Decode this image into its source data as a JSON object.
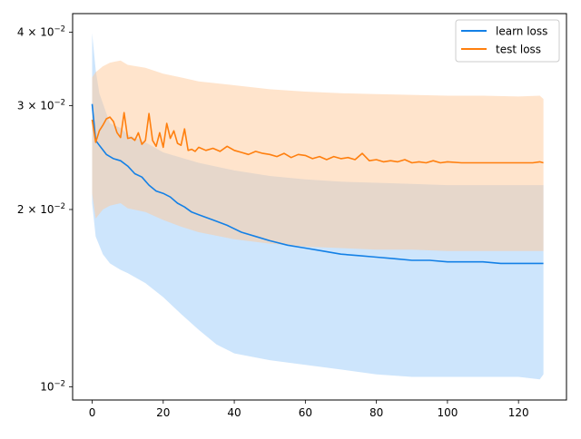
{
  "chart_data": {
    "type": "line",
    "title": "",
    "xlabel": "",
    "ylabel": "",
    "yscale": "log",
    "xlim": [
      -5.5,
      133.5
    ],
    "ylim": [
      0.0095,
      0.043
    ],
    "grid": false,
    "legend_position": "top-right",
    "x_ticks": [
      0,
      20,
      40,
      60,
      80,
      100,
      120
    ],
    "x_tick_labels": [
      "0",
      "20",
      "40",
      "60",
      "80",
      "100",
      "120"
    ],
    "y_ticks": [
      0.01,
      0.02,
      0.03,
      0.04
    ],
    "y_tick_labels": [
      {
        "mantissa": "",
        "base": "10",
        "exp": "−2"
      },
      {
        "mantissa": "2 × ",
        "base": "10",
        "exp": "−2"
      },
      {
        "mantissa": "3 × ",
        "base": "10",
        "exp": "−2"
      },
      {
        "mantissa": "4 × ",
        "base": "10",
        "exp": "−2"
      }
    ],
    "series": [
      {
        "name": "learn loss",
        "color": "#1f77b4",
        "line_color": "#1380e6",
        "band_color": "#9ccbfa",
        "mean": {
          "x": [
            0,
            1,
            2,
            4,
            6,
            8,
            10,
            12,
            14,
            16,
            18,
            20,
            22,
            24,
            26,
            28,
            30,
            34,
            38,
            42,
            46,
            50,
            55,
            60,
            65,
            70,
            75,
            80,
            85,
            90,
            95,
            100,
            105,
            110,
            115,
            120,
            127
          ],
          "y": [
            0.0302,
            0.0262,
            0.0257,
            0.0248,
            0.0244,
            0.0242,
            0.0237,
            0.023,
            0.0227,
            0.022,
            0.0215,
            0.0213,
            0.021,
            0.0205,
            0.0202,
            0.0198,
            0.0196,
            0.0192,
            0.0188,
            0.0183,
            0.018,
            0.0177,
            0.0174,
            0.0172,
            0.017,
            0.0168,
            0.0167,
            0.0166,
            0.0165,
            0.0164,
            0.0164,
            0.0163,
            0.0163,
            0.0163,
            0.0162,
            0.0162,
            0.0162
          ]
        },
        "upper": {
          "x": [
            0,
            1,
            2,
            5,
            8,
            10,
            15,
            20,
            25,
            30,
            40,
            50,
            60,
            70,
            80,
            90,
            100,
            110,
            120,
            127
          ],
          "y": [
            0.0398,
            0.0345,
            0.0315,
            0.028,
            0.0275,
            0.0268,
            0.026,
            0.025,
            0.0245,
            0.024,
            0.0233,
            0.0228,
            0.0225,
            0.0223,
            0.0222,
            0.0221,
            0.022,
            0.022,
            0.022,
            0.022
          ]
        },
        "lower": {
          "x": [
            0,
            1,
            3,
            5,
            8,
            10,
            15,
            20,
            25,
            30,
            35,
            40,
            50,
            60,
            70,
            80,
            90,
            100,
            110,
            120,
            126,
            127
          ],
          "y": [
            0.0205,
            0.018,
            0.0168,
            0.0162,
            0.0158,
            0.0156,
            0.015,
            0.0142,
            0.0133,
            0.0125,
            0.0118,
            0.0114,
            0.0111,
            0.0109,
            0.0107,
            0.0105,
            0.0104,
            0.0104,
            0.0104,
            0.0104,
            0.0103,
            0.0105
          ]
        }
      },
      {
        "name": "test loss",
        "color": "#ff7f0e",
        "line_color": "#ff7f0e",
        "band_color": "#ffc99a",
        "mean": {
          "x": [
            0,
            1,
            2,
            3,
            4,
            5,
            6,
            7,
            8,
            9,
            10,
            11,
            12,
            13,
            14,
            15,
            16,
            17,
            18,
            19,
            20,
            21,
            22,
            23,
            24,
            25,
            26,
            27,
            28,
            29,
            30,
            32,
            34,
            36,
            38,
            40,
            42,
            44,
            46,
            48,
            50,
            52,
            54,
            56,
            58,
            60,
            62,
            64,
            66,
            68,
            70,
            72,
            74,
            76,
            78,
            80,
            82,
            84,
            86,
            88,
            90,
            92,
            94,
            96,
            98,
            100,
            104,
            108,
            112,
            116,
            120,
            124,
            126,
            127
          ],
          "y": [
            0.0284,
            0.026,
            0.0272,
            0.0278,
            0.0285,
            0.0287,
            0.0282,
            0.027,
            0.0265,
            0.0292,
            0.0264,
            0.0265,
            0.0262,
            0.027,
            0.0258,
            0.0262,
            0.0291,
            0.0262,
            0.0256,
            0.027,
            0.0255,
            0.028,
            0.0264,
            0.0272,
            0.0259,
            0.0257,
            0.0274,
            0.0252,
            0.0253,
            0.0251,
            0.0255,
            0.0252,
            0.0254,
            0.0251,
            0.0256,
            0.0252,
            0.025,
            0.0248,
            0.0251,
            0.0249,
            0.0248,
            0.0246,
            0.0249,
            0.0245,
            0.0248,
            0.0247,
            0.0244,
            0.0246,
            0.0243,
            0.0246,
            0.0244,
            0.0245,
            0.0243,
            0.0249,
            0.0242,
            0.0243,
            0.0241,
            0.0242,
            0.0241,
            0.0243,
            0.024,
            0.0241,
            0.024,
            0.0242,
            0.024,
            0.0241,
            0.024,
            0.024,
            0.024,
            0.024,
            0.024,
            0.024,
            0.0241,
            0.024
          ]
        },
        "upper": {
          "x": [
            0,
            1,
            3,
            5,
            8,
            10,
            15,
            20,
            25,
            30,
            40,
            50,
            60,
            70,
            80,
            90,
            100,
            110,
            120,
            126,
            127
          ],
          "y": [
            0.0335,
            0.0342,
            0.035,
            0.0355,
            0.0358,
            0.0352,
            0.0348,
            0.034,
            0.0335,
            0.033,
            0.0325,
            0.032,
            0.0317,
            0.0315,
            0.0314,
            0.0313,
            0.0312,
            0.0312,
            0.0311,
            0.0312,
            0.0308
          ]
        },
        "lower": {
          "x": [
            0,
            1,
            3,
            5,
            8,
            10,
            15,
            20,
            25,
            30,
            40,
            50,
            60,
            70,
            80,
            90,
            100,
            110,
            120,
            126,
            127
          ],
          "y": [
            0.0213,
            0.0193,
            0.02,
            0.0203,
            0.0205,
            0.0201,
            0.0198,
            0.0192,
            0.0187,
            0.0183,
            0.0178,
            0.0175,
            0.0173,
            0.0172,
            0.0171,
            0.0171,
            0.017,
            0.017,
            0.017,
            0.017,
            0.017
          ]
        }
      }
    ]
  }
}
